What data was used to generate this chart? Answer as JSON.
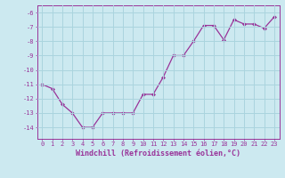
{
  "x": [
    0,
    1,
    2,
    3,
    4,
    5,
    6,
    7,
    8,
    9,
    10,
    11,
    12,
    13,
    14,
    15,
    16,
    17,
    18,
    19,
    20,
    21,
    22,
    23
  ],
  "y": [
    -11.0,
    -11.3,
    -12.4,
    -13.0,
    -14.0,
    -14.0,
    -13.0,
    -13.0,
    -13.0,
    -13.0,
    -11.7,
    -11.7,
    -10.5,
    -9.0,
    -9.0,
    -8.0,
    -6.9,
    -6.9,
    -7.9,
    -6.5,
    -6.8,
    -6.8,
    -7.1,
    -6.3
  ],
  "line_color": "#993399",
  "marker": "D",
  "markersize": 2.0,
  "linewidth": 0.9,
  "xlim": [
    -0.5,
    23.5
  ],
  "ylim": [
    -14.8,
    -5.5
  ],
  "yticks": [
    -14,
    -13,
    -12,
    -11,
    -10,
    -9,
    -8,
    -7,
    -6
  ],
  "xticks": [
    0,
    1,
    2,
    3,
    4,
    5,
    6,
    7,
    8,
    9,
    10,
    11,
    12,
    13,
    14,
    15,
    16,
    17,
    18,
    19,
    20,
    21,
    22,
    23
  ],
  "xlabel": "Windchill (Refroidissement éolien,°C)",
  "background_color": "#cce9f0",
  "grid_color": "#aad4de",
  "tick_color": "#993399",
  "label_color": "#993399",
  "tick_fontsize": 5.0,
  "xlabel_fontsize": 6.0
}
